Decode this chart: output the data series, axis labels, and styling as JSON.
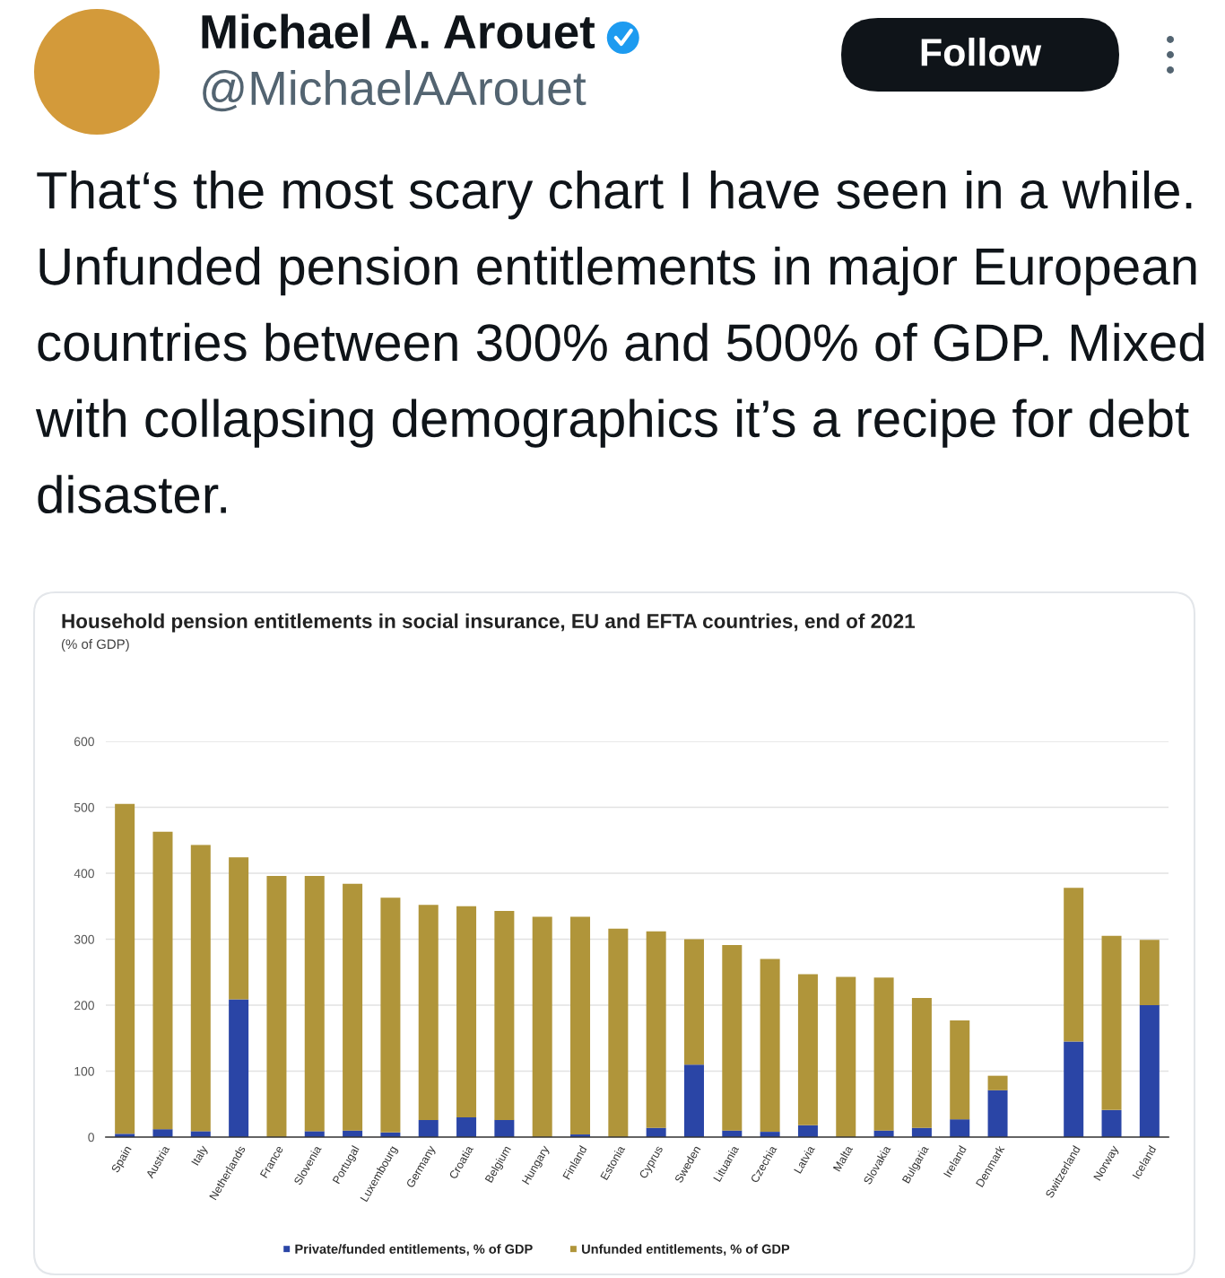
{
  "chart_data": {
    "type": "bar",
    "stacked": true,
    "title": "Household pension entitlements in social insurance, EU and EFTA countries, end of 2021",
    "subtitle": "(% of GDP)",
    "annotations": [
      "Michael A. Arouet",
      "@MichaelAArouet",
      "Follow",
      "That‘s the most scary chart I have seen in a while. Unfunded pension entitlements in major European countries between 300% and 500% of GDP. Mixed with collapsing demographics it’s a recipe for debt disaster."
    ],
    "categories": [
      "Spain",
      "Austria",
      "Italy",
      "Netherlands",
      "France",
      "Slovenia",
      "Portugal",
      "Luxembourg",
      "Germany",
      "Croatia",
      "Belgium",
      "Hungary",
      "Finland",
      "Estonia",
      "Cyprus",
      "Sweden",
      "Lituania",
      "Czechia",
      "Latvia",
      "Malta",
      "Slovakia",
      "Bulgaria",
      "Ireland",
      "Denmark",
      null,
      "Switzerland",
      "Norway",
      "Iceland"
    ],
    "series": [
      {
        "name": "Private/funded entitlements, % of GDP",
        "color": "#2a45a6",
        "values": [
          5,
          12,
          9,
          209,
          0,
          9,
          10,
          7,
          26,
          30,
          26,
          0,
          4,
          0,
          14,
          110,
          10,
          8,
          18,
          0,
          10,
          14,
          27,
          71,
          null,
          145,
          41,
          200
        ]
      },
      {
        "name": "Unfunded entitlements, % of GDP",
        "color": "#b0953a",
        "values": [
          500,
          451,
          434,
          215,
          396,
          387,
          374,
          356,
          326,
          320,
          317,
          334,
          330,
          316,
          298,
          190,
          281,
          262,
          229,
          243,
          232,
          197,
          150,
          22,
          null,
          233,
          264,
          99
        ]
      }
    ],
    "ylim": [
      0,
      600
    ],
    "yticks": [
      0,
      100,
      200,
      300,
      400,
      500,
      600
    ],
    "grid": "y",
    "legend": "bottom"
  }
}
